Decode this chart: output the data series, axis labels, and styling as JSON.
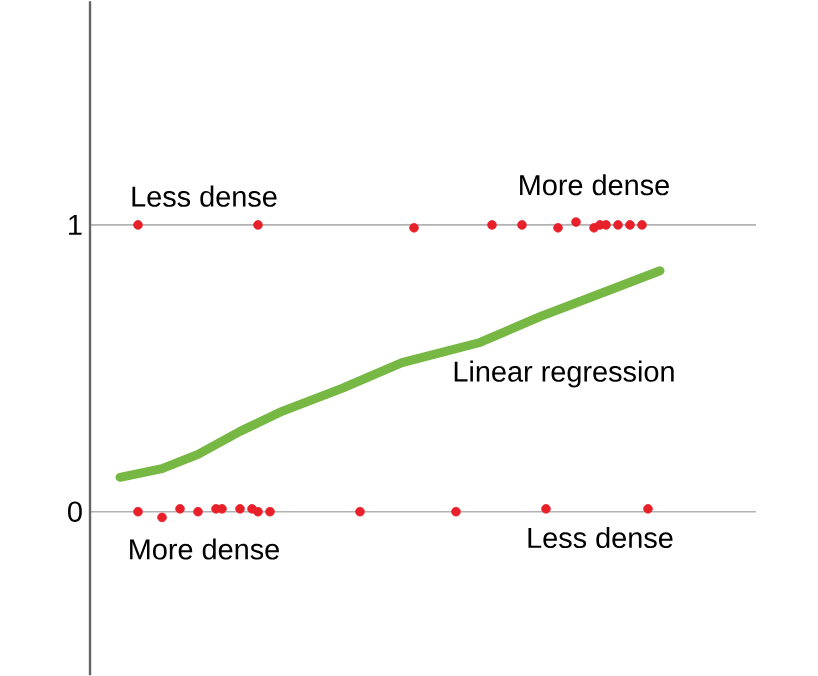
{
  "chart_data": {
    "type": "scatter",
    "grid": "y",
    "tick_labels": "y",
    "ylim": [
      -0.57,
      1.78
    ],
    "yticks": [
      0,
      1
    ],
    "marker": "circle",
    "categories": [
      null,
      null,
      null,
      null,
      null,
      null,
      null,
      null,
      null,
      null,
      null,
      null,
      null,
      null,
      null,
      null,
      null,
      null,
      null,
      null,
      null,
      null,
      null,
      null,
      null,
      null,
      null,
      null,
      null,
      null,
      null,
      null,
      null,
      null,
      null,
      null,
      null,
      null,
      null,
      null,
      null,
      null,
      null,
      null,
      null,
      null,
      null,
      null,
      null,
      null,
      null,
      null,
      null,
      null,
      null,
      null,
      null,
      null,
      null,
      null,
      null,
      null,
      null,
      null,
      null,
      null,
      null,
      null,
      null,
      null,
      null,
      null,
      null,
      null,
      null,
      null,
      null,
      null,
      null,
      null,
      null,
      null,
      null,
      null,
      null,
      null,
      null,
      null,
      null,
      null,
      null,
      null,
      null,
      null,
      null,
      null,
      null,
      null,
      null,
      null,
      null,
      null,
      null,
      null,
      null,
      null,
      null,
      null,
      null,
      null,
      null,
      null
    ],
    "series": [
      {
        "color": "#e8202a",
        "values": [
          null,
          null,
          null,
          null,
          null,
          null,
          null,
          null,
          1,
          null,
          null,
          null,
          null,
          null,
          null,
          null,
          null,
          null,
          null,
          null,
          null,
          null,
          null,
          null,
          null,
          null,
          null,
          null,
          1,
          null,
          null,
          null,
          null,
          null,
          null,
          null,
          null,
          null,
          null,
          null,
          null,
          null,
          null,
          null,
          null,
          null,
          null,
          null,
          null,
          null,
          null,
          null,
          null,
          null,
          0.99,
          null,
          null,
          null,
          null,
          null,
          null,
          null,
          null,
          null,
          null,
          null,
          null,
          1,
          null,
          null,
          null,
          null,
          1,
          null,
          null,
          null,
          null,
          null,
          0.99,
          null,
          null,
          1.01,
          null,
          null,
          0.99,
          1,
          1,
          null,
          1,
          null,
          1,
          null,
          1,
          null,
          null,
          null,
          null,
          null,
          null,
          null,
          null,
          null,
          null,
          null,
          null,
          null,
          null,
          null,
          null,
          null,
          null,
          null
        ]
      },
      {
        "color": "#e8202a",
        "values": [
          null,
          null,
          null,
          null,
          null,
          null,
          null,
          null,
          0,
          null,
          null,
          null,
          -0.02,
          null,
          null,
          0.01,
          null,
          null,
          0,
          null,
          null,
          0.01,
          0.01,
          null,
          null,
          0.01,
          null,
          0.01,
          0,
          null,
          0,
          null,
          null,
          null,
          null,
          null,
          null,
          null,
          null,
          null,
          null,
          null,
          null,
          null,
          null,
          0,
          null,
          null,
          null,
          null,
          null,
          null,
          null,
          null,
          null,
          null,
          null,
          null,
          null,
          null,
          null,
          0,
          null,
          null,
          null,
          null,
          null,
          null,
          null,
          null,
          null,
          null,
          null,
          null,
          null,
          null,
          0.01,
          null,
          null,
          null,
          null,
          null,
          null,
          null,
          null,
          null,
          null,
          null,
          null,
          null,
          null,
          null,
          null,
          0.01,
          null,
          null,
          null,
          null,
          null,
          null,
          null,
          null,
          null,
          null,
          null,
          null,
          null,
          null,
          null,
          null,
          null,
          null
        ]
      },
      {
        "type": "line",
        "color": "#77b844",
        "marker": "none",
        "values": [
          null,
          null,
          null,
          null,
          null,
          0.12,
          null,
          null,
          null,
          null,
          null,
          null,
          0.15,
          null,
          null,
          null,
          null,
          null,
          0.2,
          null,
          null,
          null,
          null,
          null,
          null,
          0.28,
          null,
          null,
          null,
          null,
          null,
          null,
          0.35,
          null,
          null,
          null,
          null,
          null,
          null,
          null,
          null,
          null,
          0.43,
          null,
          null,
          null,
          null,
          null,
          null,
          null,
          null,
          null,
          0.52,
          null,
          null,
          null,
          null,
          null,
          null,
          null,
          null,
          null,
          null,
          null,
          null,
          0.59,
          null,
          null,
          null,
          null,
          null,
          null,
          null,
          null,
          null,
          0.68,
          null,
          null,
          null,
          null,
          null,
          null,
          null,
          null,
          null,
          0.76,
          null,
          null,
          null,
          null,
          null,
          null,
          null,
          null,
          null,
          0.84,
          null,
          null,
          null,
          null,
          null,
          null,
          null,
          null,
          null,
          null,
          null,
          null,
          null,
          null,
          null,
          null
        ]
      }
    ],
    "annotations": [
      "Less dense",
      "More dense",
      "More dense",
      "Less dense",
      "Linear regression"
    ]
  }
}
